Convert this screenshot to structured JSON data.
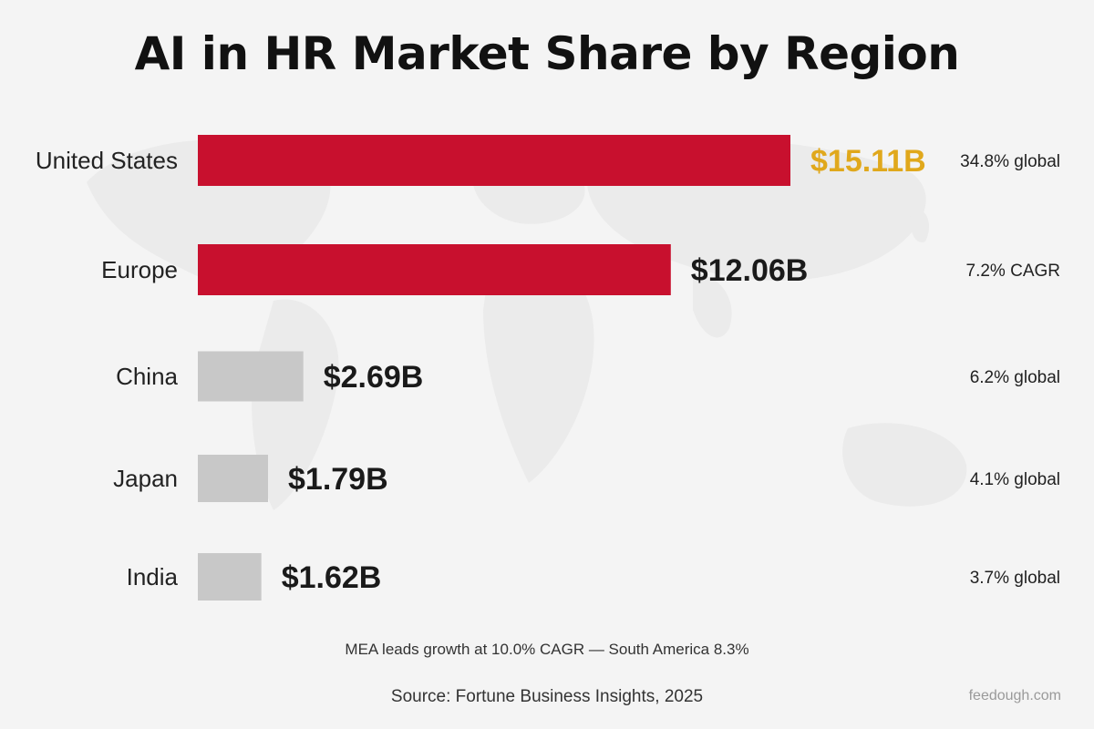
{
  "chart_data": {
    "type": "bar",
    "orientation": "horizontal",
    "title": "AI in HR Market Share by Region",
    "categories": [
      "United States",
      "Europe",
      "China",
      "Japan",
      "India"
    ],
    "values": [
      15.11,
      12.06,
      2.69,
      1.79,
      1.62
    ],
    "value_labels": [
      "$15.11B",
      "$12.06B",
      "$2.69B",
      "$1.79B",
      "$1.62B"
    ],
    "notes": [
      "34.8% global",
      "7.2% CAGR",
      "6.2% global",
      "4.1% global",
      "3.7% global"
    ],
    "bar_colors": [
      "#c8102e",
      "#c8102e",
      "#c8c8c8",
      "#c8c8c8",
      "#c8c8c8"
    ],
    "value_label_colors": [
      "#e0a81c",
      "#1a1a1a",
      "#1a1a1a",
      "#1a1a1a",
      "#1a1a1a"
    ],
    "xlim": [
      0,
      15.11
    ],
    "grid": false,
    "legend": "none"
  },
  "footnote": "MEA leads growth at 10.0% CAGR — South America 8.3%",
  "source": "Source: Fortune Business Insights, 2025",
  "credit": "feedough.com"
}
